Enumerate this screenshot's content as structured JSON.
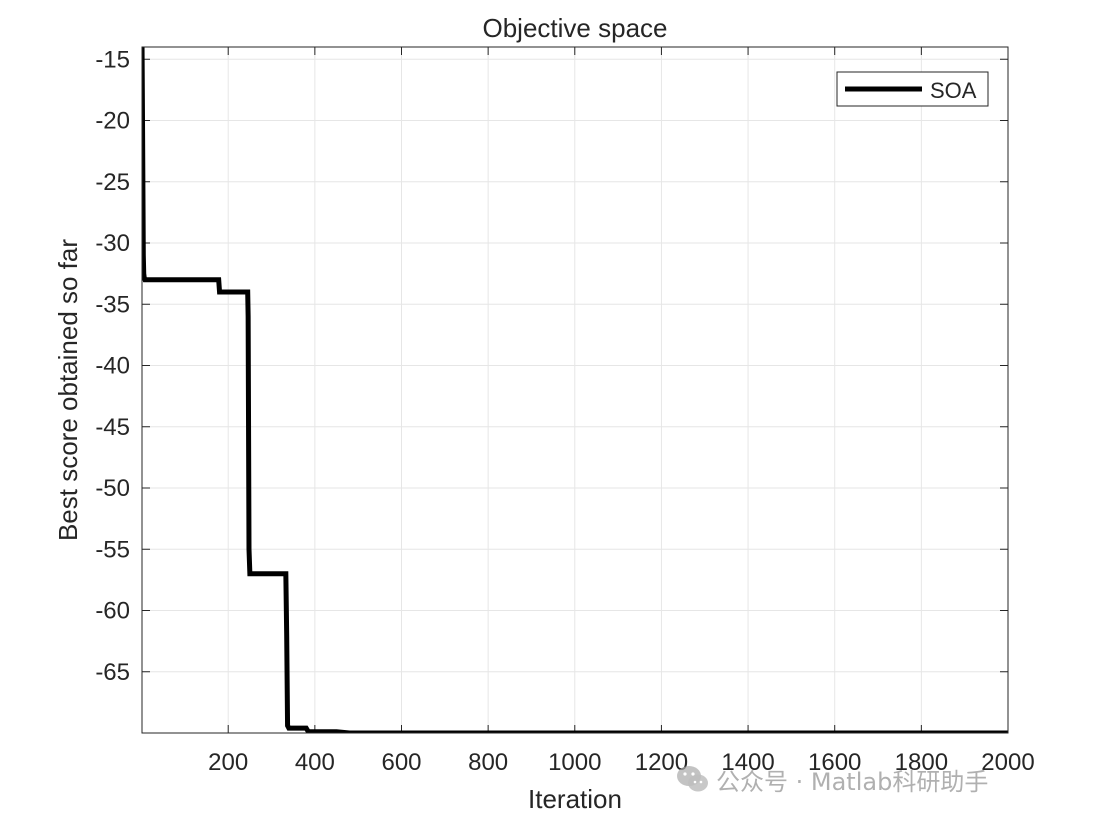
{
  "chart_data": {
    "type": "line",
    "title": "Objective space",
    "xlabel": "Iteration",
    "ylabel": "Best score obtained so far",
    "xlim": [
      1,
      2000
    ],
    "ylim": [
      -70,
      -14
    ],
    "x_ticks": [
      200,
      400,
      600,
      800,
      1000,
      1200,
      1400,
      1600,
      1800,
      2000
    ],
    "y_ticks": [
      -15,
      -20,
      -25,
      -30,
      -35,
      -40,
      -45,
      -50,
      -55,
      -60,
      -65
    ],
    "grid": true,
    "legend": {
      "position": "top-right"
    },
    "series": [
      {
        "name": "SOA",
        "color": "#000000",
        "x": [
          1,
          2,
          3,
          4,
          5,
          6,
          8,
          10,
          20,
          100,
          178,
          180,
          245,
          246,
          248,
          250,
          300,
          333,
          335,
          337,
          340,
          360,
          380,
          385,
          400,
          450,
          480,
          500,
          1000,
          1500,
          2000
        ],
        "y": [
          -13.5,
          -19.0,
          -25.0,
          -31.0,
          -32.5,
          -32.8,
          -33.0,
          -33.0,
          -33.0,
          -33.0,
          -33.0,
          -34.0,
          -34.0,
          -36.0,
          -55.0,
          -57.0,
          -57.0,
          -57.0,
          -62.0,
          -69.4,
          -69.6,
          -69.6,
          -69.6,
          -69.9,
          -69.9,
          -69.9,
          -70.0,
          -70.0,
          -70.0,
          -70.0,
          -70.0
        ]
      }
    ]
  },
  "watermark": {
    "text": "公众号 · Matlab科研助手",
    "icon": "wechat-icon"
  }
}
